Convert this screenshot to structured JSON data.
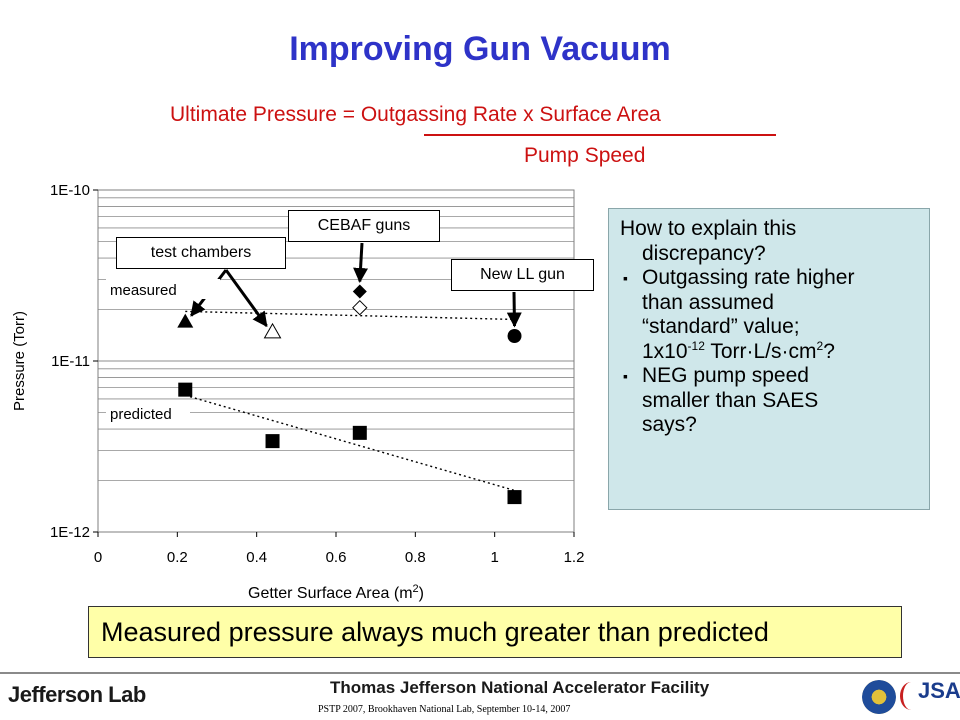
{
  "slide": {
    "title": "Improving Gun Vacuum",
    "equation": {
      "numerator": "Ultimate Pressure = Outgassing Rate x Surface Area",
      "denominator": "Pump Speed"
    },
    "info_box": {
      "question_line1": "How to explain this",
      "question_line2": "discrepancy?",
      "bullet1_line1": "Outgassing rate higher",
      "bullet1_line2": "than assumed",
      "bullet1_line3": "“standard” value;",
      "bullet1_line4_base": "1x10",
      "bullet1_line4_exp": "-12",
      "bullet1_line4_mid": " Torr·L/s·cm",
      "bullet1_line4_exp2": "2",
      "bullet1_line4_end": "?",
      "bullet2_line1": "NEG pump speed",
      "bullet2_line2": "smaller than SAES",
      "bullet2_line3": "says?",
      "bullet_marker": "▪"
    },
    "callouts": {
      "test_chambers": "test chambers",
      "cebaf_guns": "CEBAF guns",
      "new_ll_gun": "New LL gun"
    },
    "summary": "Measured pressure always much greater than predicted",
    "footer": {
      "lab_name": "Jefferson Lab",
      "facility": "Thomas Jefferson National Accelerator Facility",
      "citation": "PSTP 2007, Brookhaven National Lab, September 10-14, 2007",
      "partner_logo_text": "JSA"
    }
  },
  "chart_data": {
    "type": "scatter",
    "xlabel": "Getter Surface Area (m",
    "xlabel_sup": "2",
    "xlabel_end": ")",
    "ylabel": "Pressure (Torr)",
    "xlim": [
      0,
      1.2
    ],
    "ylim": [
      1e-12,
      1e-10
    ],
    "y_scale": "log",
    "x_ticks": [
      "0",
      "0.2",
      "0.4",
      "0.6",
      "0.8",
      "1",
      "1.2"
    ],
    "y_ticks": [
      "1E-10",
      "1E-11",
      "1E-12"
    ],
    "grid": "horizontal minor lines",
    "annotations": {
      "measured_label": "measured",
      "predicted_label": "predicted"
    },
    "series": [
      {
        "name": "measured",
        "points": [
          {
            "x": 0.22,
            "y": 1.7e-11,
            "marker": "triangle-filled"
          },
          {
            "x": 0.44,
            "y": 1.48e-11,
            "marker": "triangle-open"
          },
          {
            "x": 0.66,
            "y": 2.55e-11,
            "marker": "diamond-filled"
          },
          {
            "x": 0.66,
            "y": 2.05e-11,
            "marker": "diamond-open"
          },
          {
            "x": 1.05,
            "y": 1.4e-11,
            "marker": "circle-filled"
          }
        ]
      },
      {
        "name": "predicted",
        "points": [
          {
            "x": 0.22,
            "y": 6.8e-12,
            "marker": "square-filled"
          },
          {
            "x": 0.44,
            "y": 3.4e-12,
            "marker": "square-filled"
          },
          {
            "x": 0.66,
            "y": 3.8e-12,
            "marker": "square-filled"
          },
          {
            "x": 1.05,
            "y": 1.6e-12,
            "marker": "square-filled"
          }
        ]
      }
    ],
    "trendlines": [
      {
        "series": "measured",
        "from": {
          "x": 0.22,
          "y": 1.95e-11
        },
        "to": {
          "x": 1.05,
          "y": 1.75e-11
        }
      },
      {
        "series": "predicted",
        "from": {
          "x": 0.22,
          "y": 6.3e-12
        },
        "to": {
          "x": 1.05,
          "y": 1.75e-12
        }
      }
    ]
  }
}
